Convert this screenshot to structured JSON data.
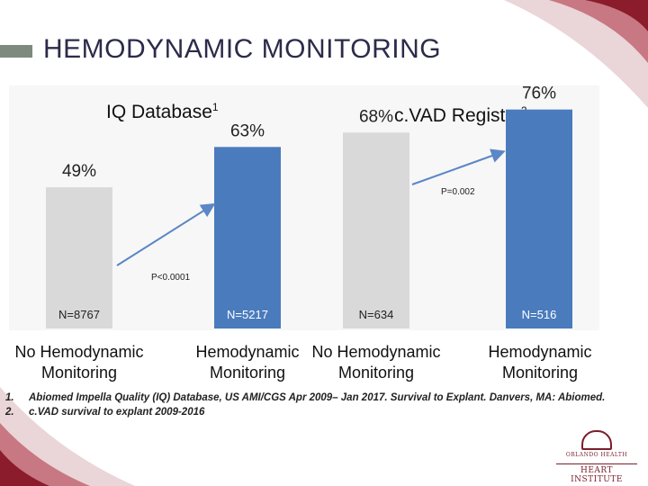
{
  "slide": {
    "title": "HEMODYNAMIC MONITORING",
    "logo_small": "ORLANDO HEALTH",
    "logo_big": "HEART INSTITUTE"
  },
  "chart_data": [
    {
      "type": "bar",
      "group_title": "IQ Database",
      "group_sup": "1",
      "categories": [
        "No Hemodynamic Monitoring",
        "Hemodynamic Monitoring"
      ],
      "values": [
        49,
        63
      ],
      "value_labels": [
        "49%",
        "63%"
      ],
      "n_labels": [
        "N=8767",
        "N=5217"
      ],
      "colors": [
        "#d9d9d9",
        "#4a7bbd"
      ],
      "p_value": "P<0.0001",
      "ylim": [
        0,
        80
      ]
    },
    {
      "type": "bar",
      "group_title": "c.VAD Registry",
      "group_sup": "2",
      "categories": [
        "No Hemodynamic Monitoring",
        "Hemodynamic Monitoring"
      ],
      "values": [
        68,
        76
      ],
      "value_labels": [
        "68%",
        "76%"
      ],
      "n_labels": [
        "N=634",
        "N=516"
      ],
      "colors": [
        "#d9d9d9",
        "#4a7bbd"
      ],
      "p_value": "P=0.002",
      "ylim": [
        0,
        80
      ]
    }
  ],
  "category_lines": {
    "no_hemo": [
      "No Hemodynamic",
      "Monitoring"
    ],
    "hemo": [
      "Hemodynamic",
      "Monitoring"
    ]
  },
  "footnotes": [
    {
      "num": "1.",
      "text": "Abiomed Impella Quality (IQ) Database, US AMI/CGS Apr 2009– Jan 2017. Survival to Explant. Danvers, MA: Abiomed."
    },
    {
      "num": "2.",
      "text": "c.VAD survival to explant 2009-2016"
    }
  ]
}
